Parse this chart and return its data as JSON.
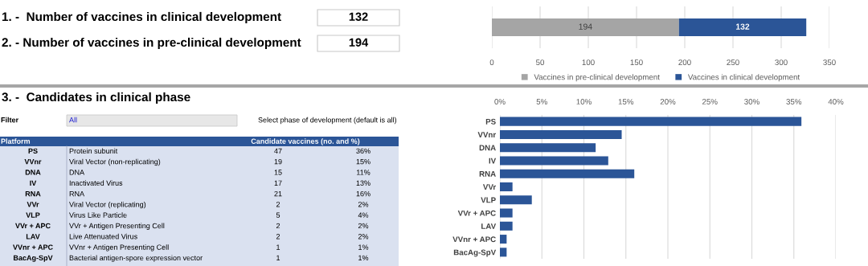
{
  "chart_data": [
    {
      "type": "other",
      "annotations": [
        "1. -  Number of vaccines in clinical development",
        "132",
        "2. - Number of vaccines in pre-clinical development",
        "194"
      ]
    },
    {
      "type": "bar",
      "orientation": "horizontal",
      "stacked": true,
      "categories": [
        null
      ],
      "series": [
        {
          "name": "Vaccines in pre-clinical development",
          "color": "#a5a5a5",
          "values": [
            194
          ]
        },
        {
          "name": "Vaccines in clinical development",
          "color": "#2b5597",
          "values": [
            132
          ]
        }
      ],
      "xlim": [
        0,
        350
      ],
      "xticks": [
        0,
        50,
        100,
        150,
        200,
        250,
        300,
        350
      ],
      "grid": "x",
      "legend": "bottom",
      "data_labels": true
    },
    {
      "type": "other",
      "title": "3. -  Candidates in clinical phase",
      "annotations": [
        "Filter",
        "All",
        "Select phase of development (default is all)",
        "Platform",
        "Candidate vaccines (no. and %)",
        "PS",
        "Protein subunit",
        "47",
        "36%",
        "VVnr",
        "Viral Vector (non-replicating)",
        "19",
        "15%",
        "DNA",
        "DNA",
        "15",
        "11%",
        "IV",
        "Inactivated Virus",
        "17",
        "13%",
        "RNA",
        "RNA",
        "21",
        "16%",
        "VVr",
        "Viral Vector (replicating)",
        "2",
        "2%",
        "VLP",
        "Virus Like Particle",
        "5",
        "4%",
        "VVr + APC",
        "VVr + Antigen Presenting Cell",
        "2",
        "2%",
        "LAV",
        "Live Attenuated Virus",
        "2",
        "2%",
        "VVnr + APC",
        "VVnr + Antigen Presenting Cell",
        "1",
        "1%",
        "BacAg-SpV",
        "Bacterial antigen-spore expression vector",
        "1",
        "1%"
      ]
    },
    {
      "type": "bar",
      "orientation": "horizontal",
      "categories": [
        "PS",
        "VVnr",
        "DNA",
        "IV",
        "RNA",
        "VVr",
        "VLP",
        "VVr + APC",
        "LAV",
        "VVnr + APC",
        "BacAg-SpV"
      ],
      "values": [
        35.9,
        14.5,
        11.4,
        12.9,
        16.0,
        1.5,
        3.8,
        1.5,
        1.5,
        0.8,
        0.8
      ],
      "color": "#2b5597",
      "xlim": [
        0,
        40
      ],
      "xticks": [
        {
          "value": 0,
          "label": "0%"
        },
        {
          "value": 5,
          "label": "5%"
        },
        {
          "value": 10,
          "label": "10%"
        },
        {
          "value": 15,
          "label": "15%"
        },
        {
          "value": 20,
          "label": "20%"
        },
        {
          "value": 25,
          "label": "25%"
        },
        {
          "value": 30,
          "label": "30%"
        },
        {
          "value": 35,
          "label": "35%"
        },
        {
          "value": 40,
          "label": "40%"
        }
      ],
      "grid": "x"
    }
  ]
}
